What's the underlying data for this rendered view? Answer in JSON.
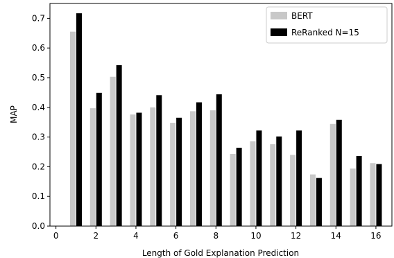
{
  "chart_data": {
    "type": "bar",
    "title": "",
    "xlabel": "Length of Gold Explanation Prediction",
    "ylabel": "MAP",
    "xlim": [
      -0.3,
      16.8
    ],
    "ylim": [
      0,
      0.75
    ],
    "xticks": [
      0,
      2,
      4,
      6,
      8,
      10,
      12,
      14,
      16
    ],
    "yticks": [
      0.0,
      0.1,
      0.2,
      0.3,
      0.4,
      0.5,
      0.6,
      0.7
    ],
    "ytick_labels": [
      "0.0",
      "0.1",
      "0.2",
      "0.3",
      "0.4",
      "0.5",
      "0.6",
      "0.7"
    ],
    "grid": false,
    "legend_position": "top-right",
    "x": [
      1,
      2,
      3,
      4,
      5,
      6,
      7,
      8,
      9,
      10,
      11,
      12,
      13,
      14,
      15,
      16
    ],
    "series": [
      {
        "name": "BERT",
        "color": "#c8c8c8",
        "values": [
          0.655,
          0.397,
          0.503,
          0.376,
          0.4,
          0.348,
          0.387,
          0.39,
          0.243,
          0.286,
          0.276,
          0.24,
          0.174,
          0.344,
          0.194,
          0.212
        ]
      },
      {
        "name": "ReRanked N=15",
        "color": "#000000",
        "values": [
          0.717,
          0.449,
          0.542,
          0.382,
          0.441,
          0.365,
          0.417,
          0.444,
          0.264,
          0.322,
          0.302,
          0.322,
          0.162,
          0.358,
          0.236,
          0.209
        ]
      }
    ]
  }
}
